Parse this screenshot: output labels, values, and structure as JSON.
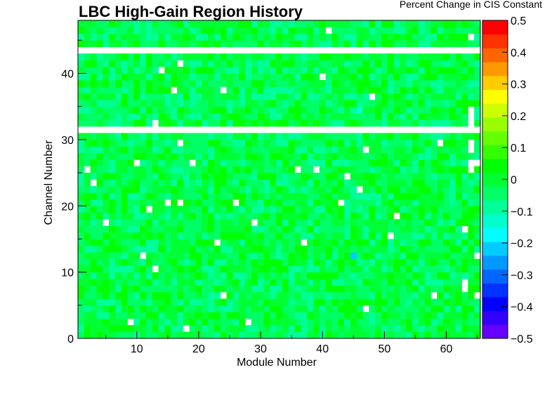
{
  "chart_data": {
    "type": "heatmap",
    "title": "LBC High-Gain Region History",
    "xlabel": "Module Number",
    "ylabel": "Channel Number",
    "zlabel": "Percent Change in CIS Constant",
    "xlim": [
      1,
      65
    ],
    "ylim": [
      0,
      48
    ],
    "zlim": [
      -0.5,
      0.5
    ],
    "x_ticks": [
      10,
      20,
      30,
      40,
      50,
      60
    ],
    "y_ticks": [
      0,
      10,
      20,
      30,
      40
    ],
    "z_ticks": [
      -0.5,
      -0.4,
      -0.3,
      -0.2,
      -0.1,
      0,
      0.1,
      0.2,
      0.3,
      0.4,
      0.5
    ],
    "z_tick_labels": [
      "−0.5",
      "−0.4",
      "−0.3",
      "−0.2",
      "−0.1",
      "0",
      "0.1",
      "0.2",
      "0.3",
      "0.4",
      "0.5"
    ],
    "palette": [
      "#6600ff",
      "#3300ff",
      "#0000ff",
      "#0033ff",
      "#0066ff",
      "#0099ff",
      "#00ccff",
      "#00ffff",
      "#00ffcc",
      "#00ff99",
      "#00ff66",
      "#00ff33",
      "#00ff00",
      "#33ff00",
      "#66ff00",
      "#99ff00",
      "#ccff00",
      "#ffff00",
      "#ffcc00",
      "#ff9900",
      "#ff6600",
      "#ff3300",
      "#ff0000"
    ],
    "empty_rows": [
      31,
      43
    ],
    "empty_cells": [
      [
        2,
        25
      ],
      [
        41,
        46
      ],
      [
        64,
        45
      ],
      [
        17,
        41
      ],
      [
        14,
        40
      ],
      [
        40,
        39
      ],
      [
        16,
        37
      ],
      [
        24,
        37
      ],
      [
        48,
        36
      ],
      [
        64,
        34
      ],
      [
        64,
        33
      ],
      [
        64,
        32
      ],
      [
        13,
        32
      ],
      [
        17,
        29
      ],
      [
        59,
        29
      ],
      [
        64,
        29
      ],
      [
        47,
        28
      ],
      [
        64,
        28
      ],
      [
        10,
        26
      ],
      [
        19,
        26
      ],
      [
        64,
        26
      ],
      [
        65,
        26
      ],
      [
        36,
        25
      ],
      [
        39,
        25
      ],
      [
        64,
        25
      ],
      [
        44,
        24
      ],
      [
        3,
        23
      ],
      [
        46,
        22
      ],
      [
        15,
        20
      ],
      [
        17,
        20
      ],
      [
        26,
        20
      ],
      [
        43,
        20
      ],
      [
        12,
        19
      ],
      [
        52,
        18
      ],
      [
        5,
        17
      ],
      [
        29,
        17
      ],
      [
        51,
        15
      ],
      [
        63,
        16
      ],
      [
        23,
        14
      ],
      [
        37,
        14
      ],
      [
        11,
        12
      ],
      [
        65,
        12
      ],
      [
        13,
        10
      ],
      [
        63,
        8
      ],
      [
        63,
        7
      ],
      [
        24,
        6
      ],
      [
        58,
        6
      ],
      [
        65,
        6
      ],
      [
        47,
        4
      ],
      [
        9,
        2
      ],
      [
        28,
        2
      ],
      [
        18,
        1
      ]
    ],
    "special_cells": [
      [
        45,
        12,
        -0.22
      ],
      [
        46,
        34,
        -0.12
      ],
      [
        34,
        41,
        0.06
      ]
    ],
    "base_value": -0.02,
    "noise_amplitude": 0.07
  }
}
